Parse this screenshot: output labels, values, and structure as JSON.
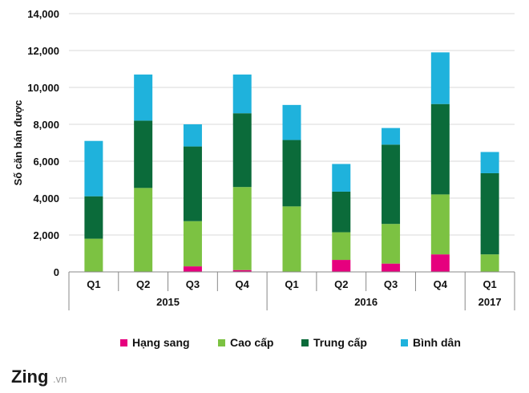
{
  "chart_data": {
    "type": "bar",
    "stacked": true,
    "ylabel": "Số căn bán được",
    "xlabel": "",
    "ylim": [
      0,
      14000
    ],
    "yticks": [
      "0",
      "2,000",
      "4,000",
      "6,000",
      "8,000",
      "10,000",
      "12,000",
      "14,000"
    ],
    "categories": [
      "Q1",
      "Q2",
      "Q3",
      "Q4",
      "Q1",
      "Q2",
      "Q3",
      "Q4",
      "Q1"
    ],
    "groups": [
      {
        "label": "2015",
        "span": 4
      },
      {
        "label": "2016",
        "span": 4
      },
      {
        "label": "2017",
        "span": 1
      }
    ],
    "series": [
      {
        "name": "Hạng sang",
        "color": "#e6007e",
        "values": [
          0,
          0,
          300,
          100,
          0,
          650,
          450,
          950,
          0
        ]
      },
      {
        "name": "Cao cấp",
        "color": "#7cc242",
        "values": [
          1800,
          4550,
          2450,
          4500,
          3550,
          1500,
          2150,
          3250,
          950
        ]
      },
      {
        "name": "Trung cấp",
        "color": "#0b6b3a",
        "values": [
          2300,
          3650,
          4050,
          4000,
          3600,
          2200,
          4300,
          4900,
          4400
        ]
      },
      {
        "name": "Bình dân",
        "color": "#1fb2dc",
        "values": [
          3000,
          2500,
          1200,
          2100,
          1900,
          1500,
          900,
          2800,
          1150
        ]
      }
    ],
    "grid": true,
    "legend_position": "bottom"
  },
  "branding": {
    "logo_main": "Zing",
    "logo_suffix": ".vn"
  }
}
